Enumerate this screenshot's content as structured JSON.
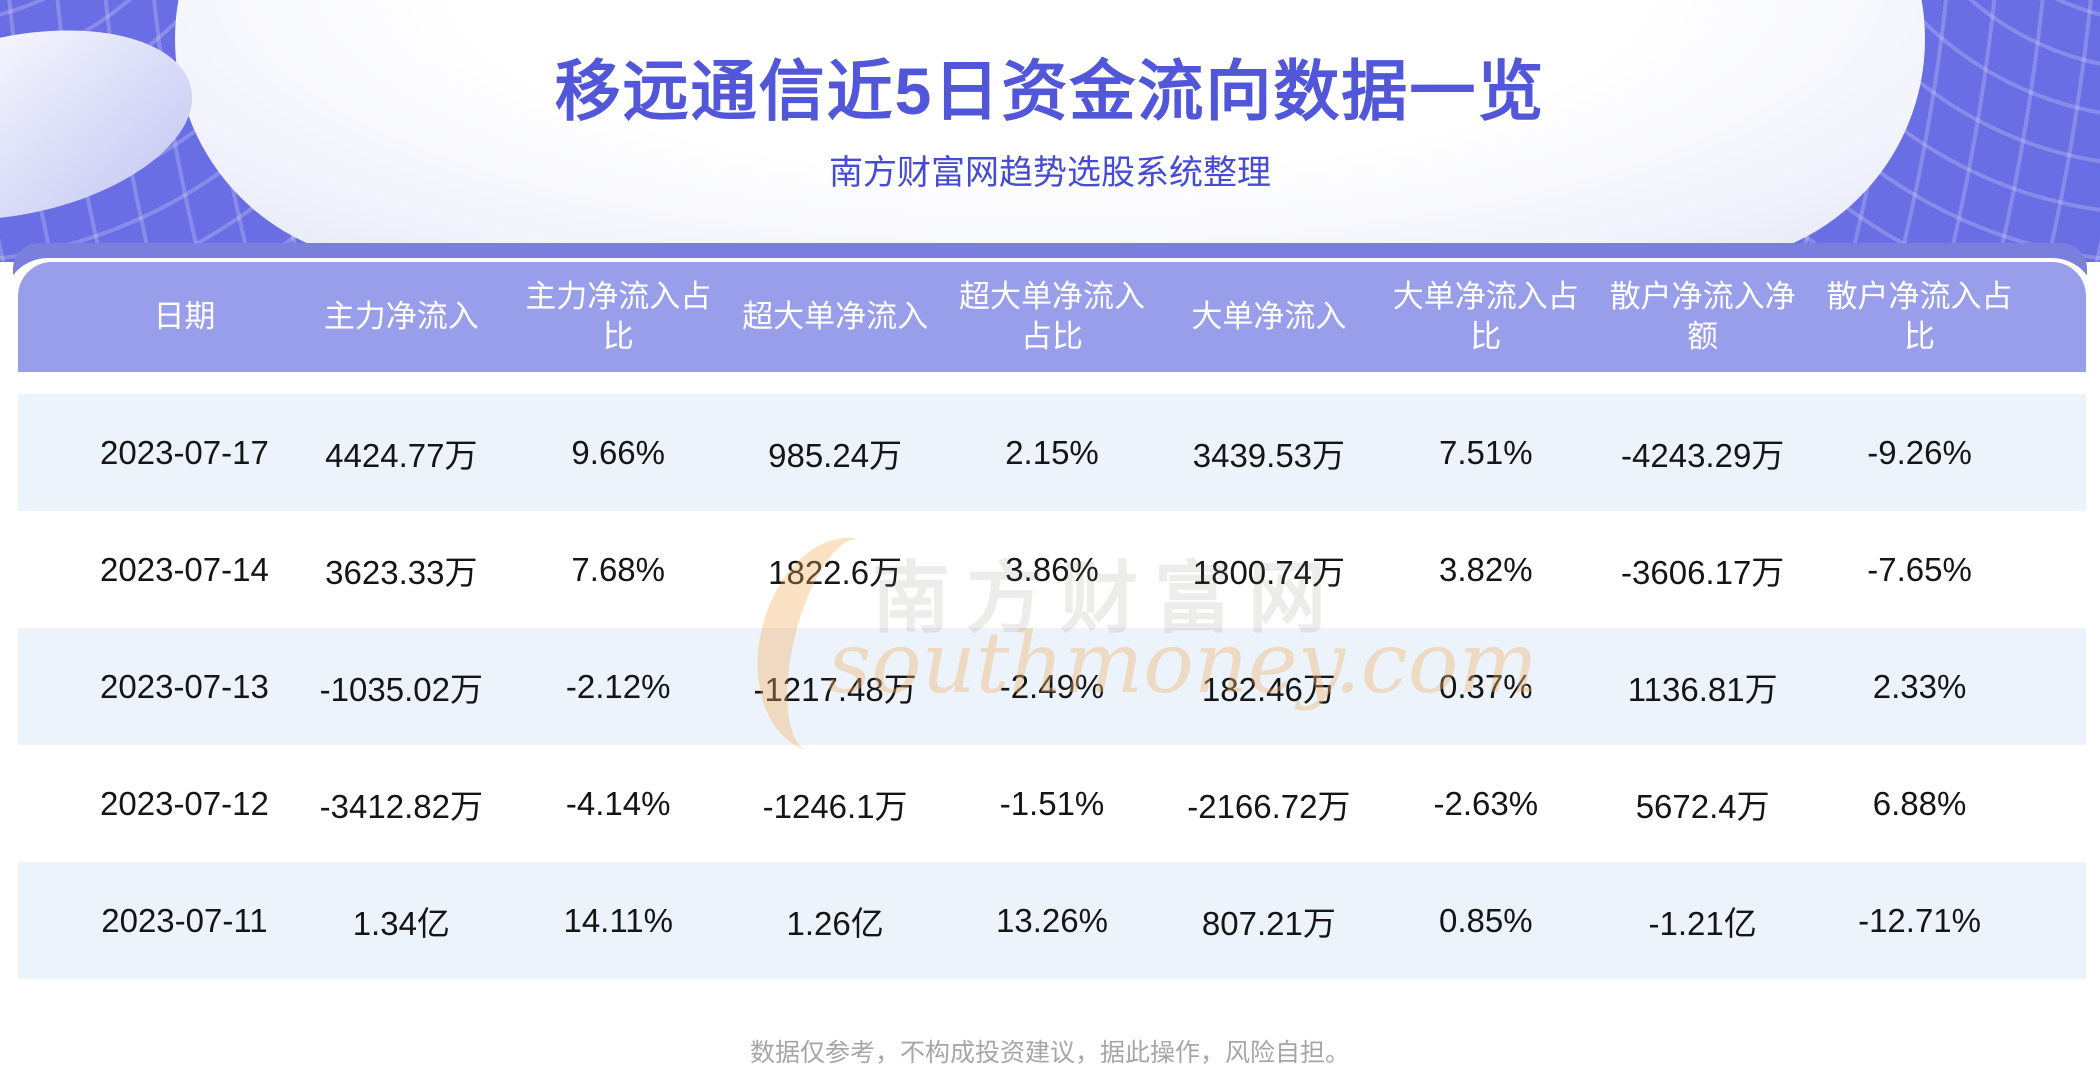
{
  "header": {
    "title": "移远通信近5日资金流向数据一览",
    "subtitle": "南方财富网趋势选股系统整理"
  },
  "footer": {
    "disclaimer": "数据仅参考，不构成投资建议，据此操作，风险自担。"
  },
  "watermark": {
    "cn": "南方财富网",
    "en": "southmoney.com"
  },
  "colors": {
    "banner_purple": "#6a6ee4",
    "back_bar": "#7a7fdd",
    "header_bg": "#989ee9",
    "row_alt_blue": "#ecf3fb",
    "title_text": "#5157d8",
    "body_text": "#151515",
    "disclaimer_text": "#a6a6a6",
    "watermark_orange": "#f5ac56"
  },
  "chart_data": {
    "type": "table",
    "title": "移远通信近5日资金流向数据一览",
    "note": "南方财富网趋势选股系统整理",
    "columns": [
      "日期",
      "主力净流入",
      "主力净流入占比",
      "超大单净流入",
      "超大单净流入占比",
      "大单净流入",
      "大单净流入占比",
      "散户净流入净额",
      "散户净流入占比"
    ],
    "rows": [
      [
        "2023-07-17",
        "4424.77万",
        "9.66%",
        "985.24万",
        "2.15%",
        "3439.53万",
        "7.51%",
        "-4243.29万",
        "-9.26%"
      ],
      [
        "2023-07-14",
        "3623.33万",
        "7.68%",
        "1822.6万",
        "3.86%",
        "1800.74万",
        "3.82%",
        "-3606.17万",
        "-7.65%"
      ],
      [
        "2023-07-13",
        "-1035.02万",
        "-2.12%",
        "-1217.48万",
        "-2.49%",
        "182.46万",
        "0.37%",
        "1136.81万",
        "2.33%"
      ],
      [
        "2023-07-12",
        "-3412.82万",
        "-4.14%",
        "-1246.1万",
        "-1.51%",
        "-2166.72万",
        "-2.63%",
        "5672.4万",
        "6.88%"
      ],
      [
        "2023-07-11",
        "1.34亿",
        "14.11%",
        "1.26亿",
        "13.26%",
        "807.21万",
        "0.85%",
        "-1.21亿",
        "-12.71%"
      ]
    ]
  }
}
